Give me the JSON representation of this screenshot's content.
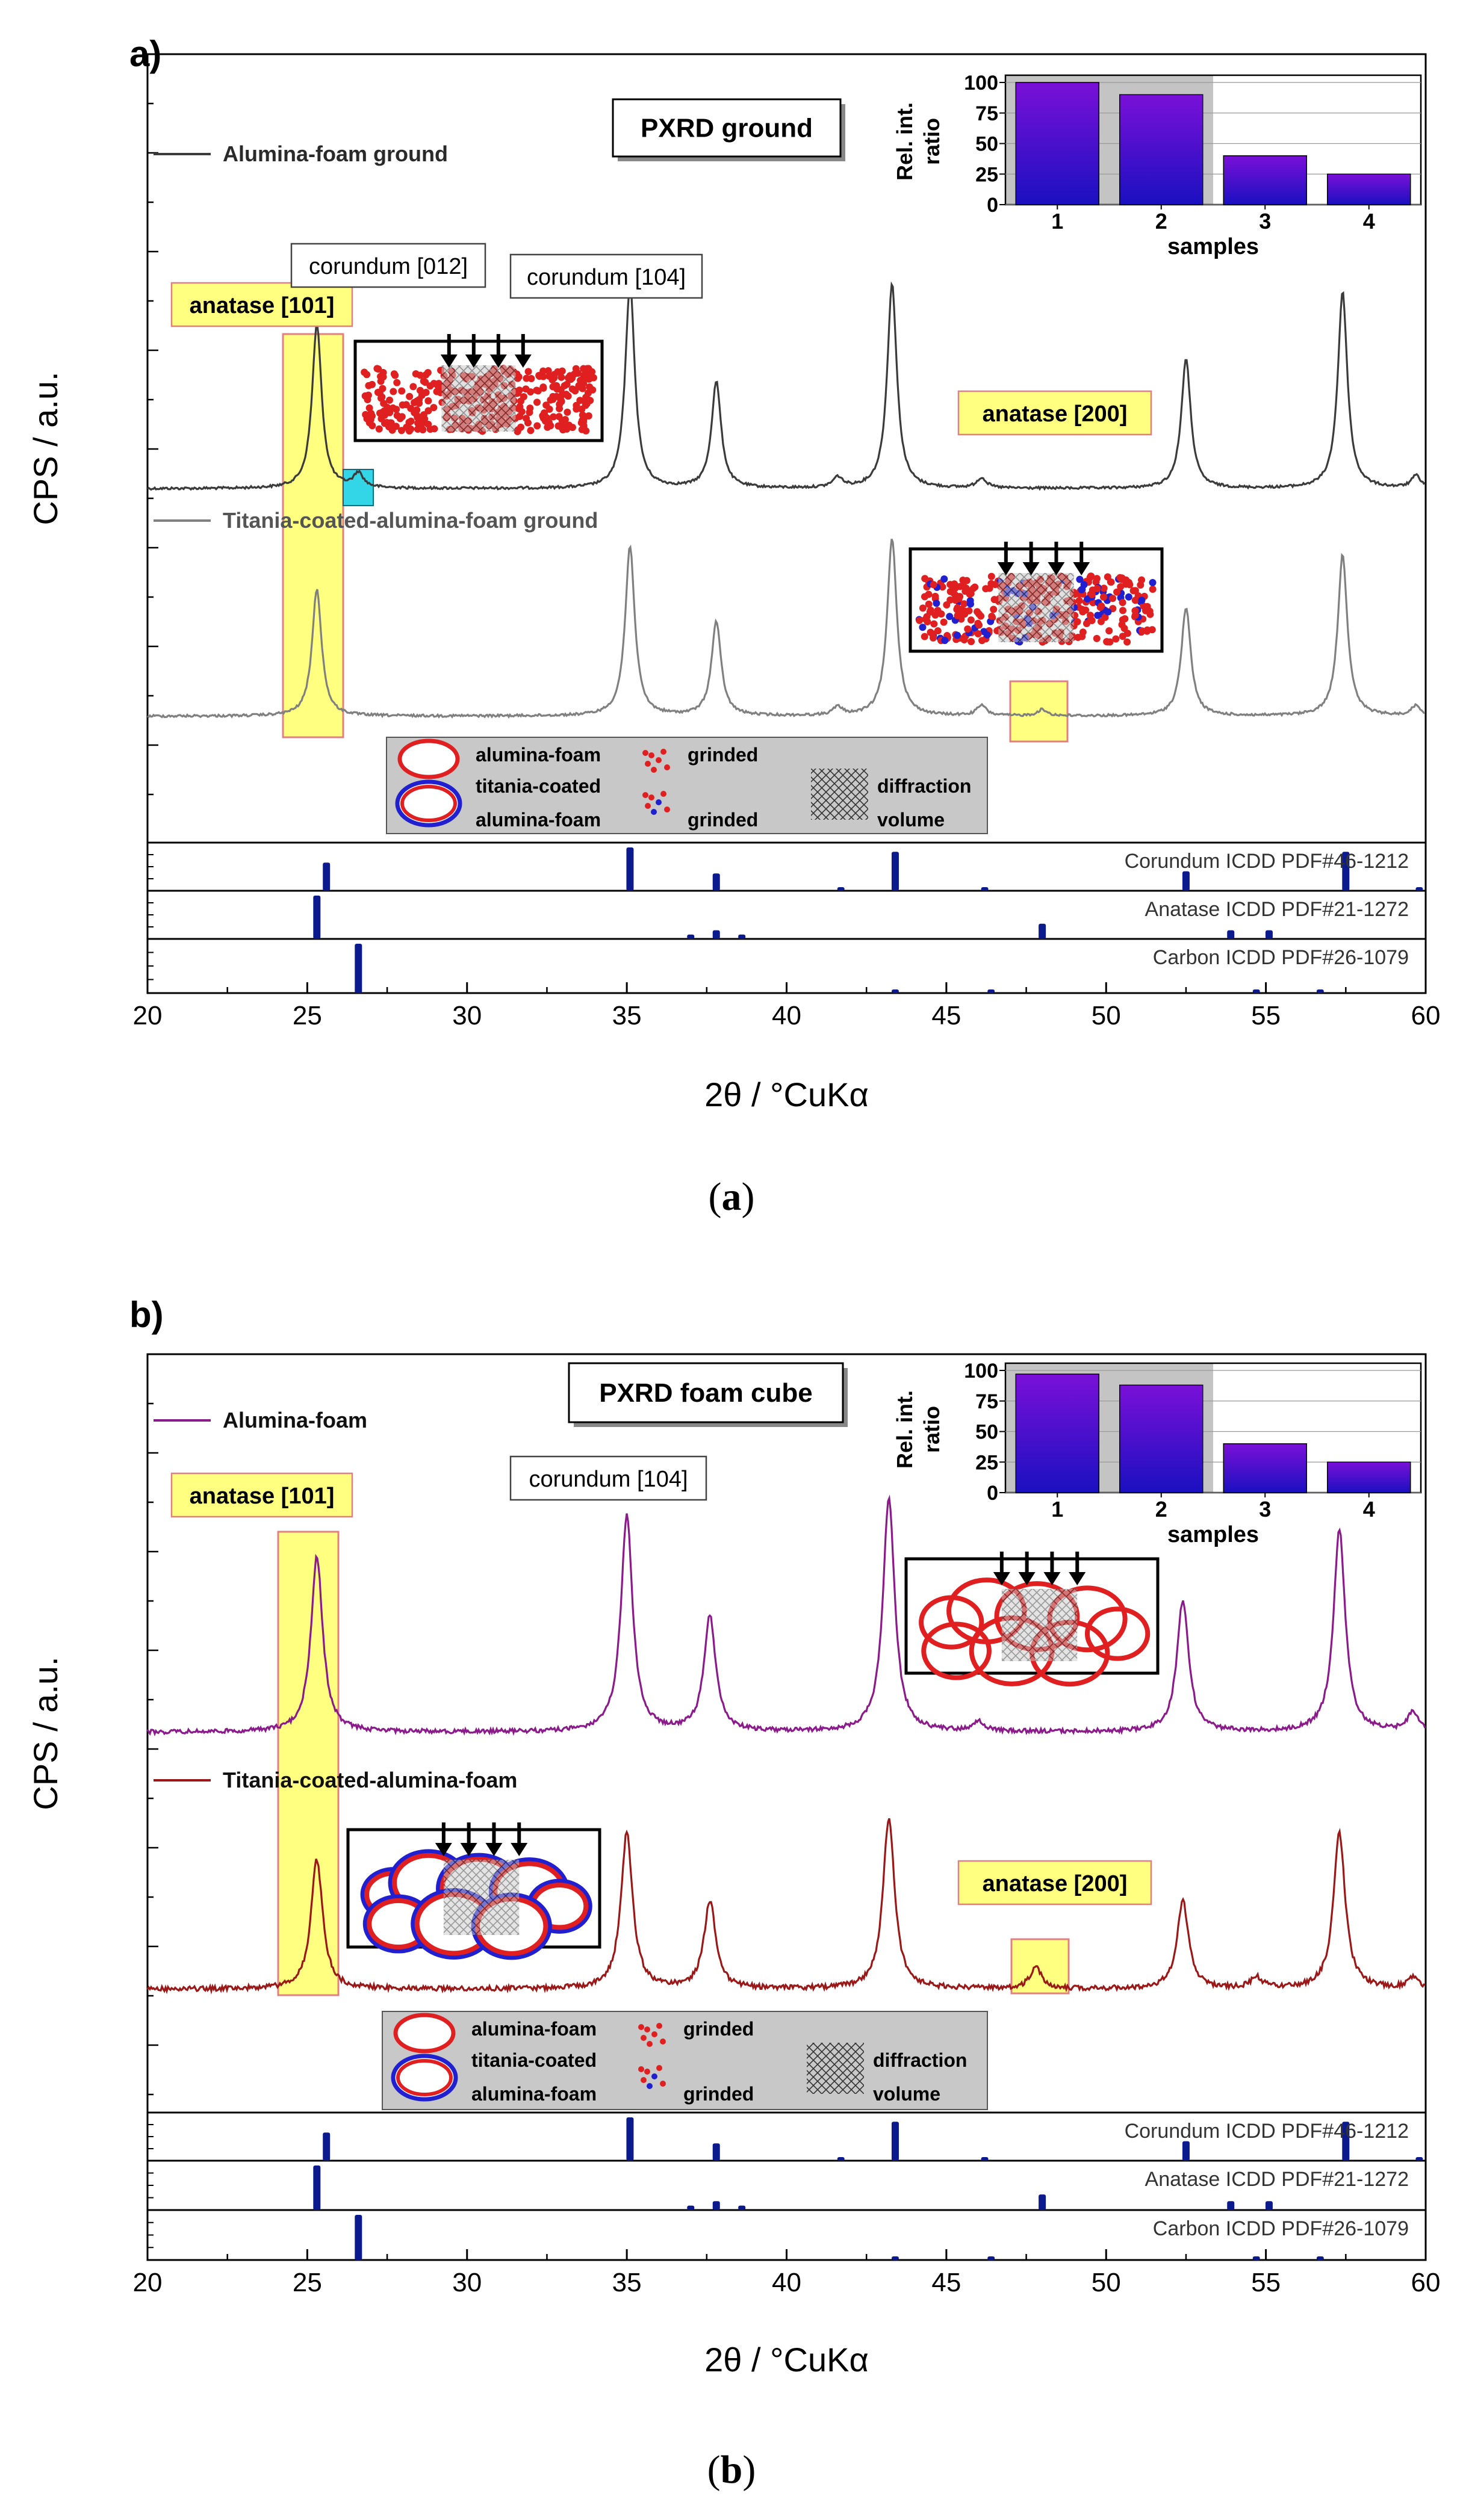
{
  "figure": {
    "caption_a": "(a)",
    "caption_b": "(b)"
  },
  "colors": {
    "ground1": "#3b3b3b",
    "ground2": "#808080",
    "cube1": "#8b1a8b",
    "cube2": "#9a1818",
    "ref_bar": "#0b1a8c",
    "highlight": "#ffff80",
    "highlight_border": "#e08080",
    "cyan": "#33d6e6"
  },
  "chart_data": [
    {
      "type": "line",
      "panel_label": "a)",
      "title": "PXRD ground",
      "xlabel": "2θ / °CuKα",
      "ylabel": "CPS / a.u.",
      "xlim": [
        20,
        60
      ],
      "xticks": [
        20,
        25,
        30,
        35,
        40,
        45,
        50,
        55,
        60
      ],
      "series": [
        {
          "name": "Alumina-foam ground",
          "color": "#3b3b3b",
          "peaks": [
            [
              25.3,
              0.8
            ],
            [
              26.6,
              0.07
            ],
            [
              35.1,
              1.0
            ],
            [
              37.8,
              0.52
            ],
            [
              41.6,
              0.05
            ],
            [
              43.3,
              1.0
            ],
            [
              46.1,
              0.05
            ],
            [
              52.5,
              0.63
            ],
            [
              57.4,
              0.96
            ],
            [
              59.7,
              0.06
            ]
          ]
        },
        {
          "name": "Titania-coated-alumina-foam ground",
          "color": "#808080",
          "peaks": [
            [
              25.3,
              0.62
            ],
            [
              35.1,
              0.83
            ],
            [
              37.8,
              0.46
            ],
            [
              41.6,
              0.04
            ],
            [
              43.3,
              0.87
            ],
            [
              46.1,
              0.05
            ],
            [
              48.0,
              0.03
            ],
            [
              52.5,
              0.53
            ],
            [
              57.4,
              0.79
            ],
            [
              59.7,
              0.05
            ]
          ]
        }
      ],
      "annotations": [
        "anatase [101]",
        "corundum [012]",
        "corundum [104]",
        "anatase [200]"
      ],
      "inset_bar": {
        "title": "Rel. int. ratio",
        "xlabel": "samples",
        "categories": [
          "1",
          "2",
          "3",
          "4"
        ],
        "values": [
          100,
          90,
          40,
          25
        ],
        "yticks": [
          0,
          25,
          50,
          75,
          100
        ],
        "ylim": [
          0,
          100
        ]
      },
      "legend": {
        "alumina": "alumina-foam",
        "titania": "titania-coated",
        "titania2": "alumina-foam",
        "grinded1": "grinded",
        "grinded2": "grinded",
        "diffraction": "diffraction",
        "volume": "volume"
      },
      "references": [
        {
          "name": "Corundum ICDD PDF#46-1212",
          "lines": [
            [
              25.6,
              0.65
            ],
            [
              35.1,
              1.0
            ],
            [
              37.8,
              0.4
            ],
            [
              41.7,
              0.05
            ],
            [
              43.4,
              0.9
            ],
            [
              46.2,
              0.02
            ],
            [
              52.5,
              0.45
            ],
            [
              57.5,
              0.9
            ],
            [
              59.8,
              0.02
            ]
          ]
        },
        {
          "name": "Anatase ICDD PDF#21-1272",
          "lines": [
            [
              25.3,
              1.0
            ],
            [
              37.0,
              0.1
            ],
            [
              37.8,
              0.2
            ],
            [
              38.6,
              0.1
            ],
            [
              48.0,
              0.35
            ],
            [
              53.9,
              0.2
            ],
            [
              55.1,
              0.2
            ]
          ]
        },
        {
          "name": "Carbon ICDD PDF#26-1079",
          "lines": [
            [
              26.6,
              1.0
            ],
            [
              43.4,
              0.05
            ],
            [
              46.4,
              0.05
            ],
            [
              54.7,
              0.02
            ],
            [
              56.7,
              0.02
            ]
          ]
        }
      ]
    },
    {
      "type": "line",
      "panel_label": "b)",
      "title": "PXRD foam cube",
      "xlabel": "2θ / °CuKα",
      "ylabel": "CPS / a.u.",
      "xlim": [
        20,
        60
      ],
      "xticks": [
        20,
        25,
        30,
        35,
        40,
        45,
        50,
        55,
        60
      ],
      "series": [
        {
          "name": "Alumina-foam",
          "color": "#8b1a8b",
          "peaks": [
            [
              25.3,
              0.75
            ],
            [
              35.0,
              0.92
            ],
            [
              37.6,
              0.49
            ],
            [
              43.2,
              1.0
            ],
            [
              46.0,
              0.04
            ],
            [
              52.4,
              0.56
            ],
            [
              57.3,
              0.86
            ],
            [
              59.6,
              0.08
            ]
          ]
        },
        {
          "name": "Titania-coated-alumina-foam",
          "color": "#9a1818",
          "peaks": [
            [
              25.3,
              0.59
            ],
            [
              35.0,
              0.71
            ],
            [
              37.6,
              0.4
            ],
            [
              43.2,
              0.78
            ],
            [
              47.8,
              0.1
            ],
            [
              52.4,
              0.4
            ],
            [
              54.7,
              0.05
            ],
            [
              57.3,
              0.71
            ],
            [
              59.6,
              0.05
            ]
          ]
        }
      ],
      "annotations": [
        "anatase [101]",
        "corundum [104]",
        "anatase [200]"
      ],
      "inset_bar": {
        "title": "Rel. int. ratio",
        "xlabel": "samples",
        "categories": [
          "1",
          "2",
          "3",
          "4"
        ],
        "values": [
          97,
          88,
          40,
          25
        ],
        "yticks": [
          0,
          25,
          50,
          75,
          100
        ],
        "ylim": [
          0,
          100
        ]
      },
      "legend": {
        "alumina": "alumina-foam",
        "titania": "titania-coated",
        "titania2": "alumina-foam",
        "grinded1": "grinded",
        "grinded2": "grinded",
        "diffraction": "diffraction",
        "volume": "volume"
      },
      "references": [
        {
          "name": "Corundum ICDD PDF#46-1212",
          "lines": [
            [
              25.6,
              0.65
            ],
            [
              35.1,
              1.0
            ],
            [
              37.8,
              0.4
            ],
            [
              41.7,
              0.05
            ],
            [
              43.4,
              0.9
            ],
            [
              46.2,
              0.02
            ],
            [
              52.5,
              0.45
            ],
            [
              57.5,
              0.9
            ],
            [
              59.8,
              0.02
            ]
          ]
        },
        {
          "name": "Anatase ICDD PDF#21-1272",
          "lines": [
            [
              25.3,
              1.0
            ],
            [
              37.0,
              0.1
            ],
            [
              37.8,
              0.2
            ],
            [
              38.6,
              0.1
            ],
            [
              48.0,
              0.35
            ],
            [
              53.9,
              0.2
            ],
            [
              55.1,
              0.2
            ]
          ]
        },
        {
          "name": "Carbon ICDD PDF#26-1079",
          "lines": [
            [
              26.6,
              1.0
            ],
            [
              43.4,
              0.05
            ],
            [
              46.4,
              0.05
            ],
            [
              54.7,
              0.02
            ],
            [
              56.7,
              0.02
            ]
          ]
        }
      ]
    }
  ]
}
